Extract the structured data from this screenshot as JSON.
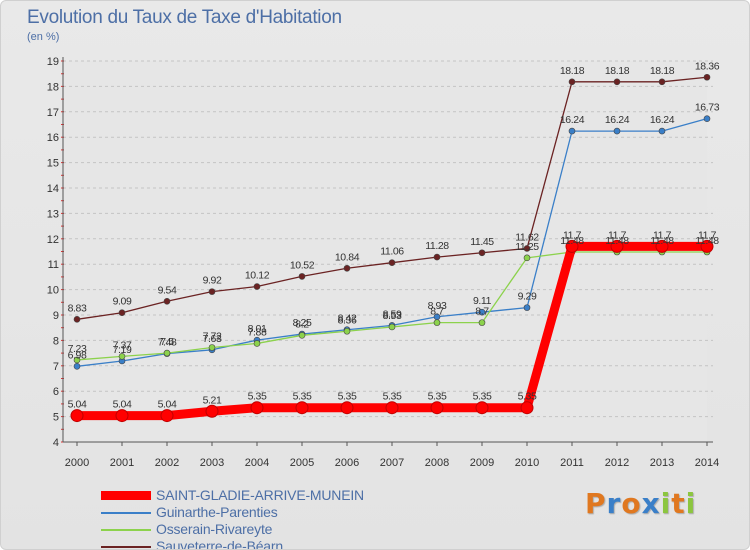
{
  "header": {
    "title": "Evolution du Taux de Taxe d'Habitation",
    "subtitle": "(en %)"
  },
  "logo": {
    "letters": [
      "P",
      "r",
      "o",
      "x",
      "i",
      "t",
      "i"
    ],
    "colors": [
      "#e07820",
      "#3a7fc8",
      "#e07820",
      "#3a7fc8",
      "#8cc63f",
      "#e07820",
      "#8cc63f"
    ]
  },
  "chart_data": {
    "type": "line",
    "title": "Evolution du Taux de Taxe d'Habitation",
    "subtitle": "(en %)",
    "xlabel": "",
    "ylabel": "",
    "x": [
      2000,
      2001,
      2002,
      2003,
      2004,
      2005,
      2006,
      2007,
      2008,
      2009,
      2010,
      2011,
      2012,
      2013,
      2014
    ],
    "ylim": [
      4,
      19
    ],
    "yticks": [
      4,
      5,
      6,
      7,
      8,
      9,
      10,
      11,
      12,
      13,
      14,
      15,
      16,
      17,
      18,
      19
    ],
    "grid": "horizontal dashed",
    "legend_position": "bottom-left",
    "series": [
      {
        "name": "SAINT-GLADIE-ARRIVE-MUNEIN",
        "color": "#ff0000",
        "emphasis": true,
        "values": [
          5.04,
          5.04,
          5.04,
          5.21,
          5.35,
          5.35,
          5.35,
          5.35,
          5.35,
          5.35,
          5.35,
          11.7,
          11.7,
          11.7,
          11.7
        ],
        "labels": [
          "5.04",
          "5.04",
          "5.04",
          "5.21",
          "5.35",
          "5.35",
          "5.35",
          "5.35",
          "5.35",
          "5.35",
          "5.35",
          "11.7",
          "11.7",
          "11.7",
          "11.7"
        ]
      },
      {
        "name": "Guinarthe-Parenties",
        "color": "#3a7fc8",
        "emphasis": false,
        "values": [
          6.98,
          7.19,
          7.48,
          7.63,
          8.01,
          8.25,
          8.42,
          8.59,
          8.93,
          9.11,
          9.29,
          16.24,
          16.24,
          16.24,
          16.73
        ],
        "labels": [
          "6.98",
          "7.19",
          "7.48",
          "7.63",
          "8.01",
          "8.25",
          "8.42",
          "8.59",
          "8.93",
          "9.11",
          "9.29",
          "16.24",
          "16.24",
          "16.24",
          "16.73"
        ]
      },
      {
        "name": "Osserain-Rivareyte",
        "color": "#8cd24c",
        "emphasis": false,
        "values": [
          7.23,
          7.37,
          7.5,
          7.72,
          7.88,
          8.2,
          8.36,
          8.53,
          8.7,
          8.7,
          11.25,
          11.48,
          11.48,
          11.48,
          11.48
        ],
        "labels": [
          "7.23",
          "7.37",
          "7.5",
          "7.72",
          "7.88",
          "8.2",
          "8.36",
          "8.53",
          "8.7",
          "8.7",
          "11.25",
          "11.48",
          "11.48",
          "11.48",
          "11.48"
        ]
      },
      {
        "name": "Sauveterre-de-Béarn",
        "color": "#6b2323",
        "emphasis": false,
        "values": [
          8.83,
          9.09,
          9.54,
          9.92,
          10.12,
          10.52,
          10.84,
          11.06,
          11.28,
          11.45,
          11.62,
          18.18,
          18.18,
          18.18,
          18.36
        ],
        "labels": [
          "8.83",
          "9.09",
          "9.54",
          "9.92",
          "10.12",
          "10.52",
          "10.84",
          "11.06",
          "11.28",
          "11.45",
          "11.62",
          "18.18",
          "18.18",
          "18.18",
          "18.36"
        ]
      }
    ]
  }
}
